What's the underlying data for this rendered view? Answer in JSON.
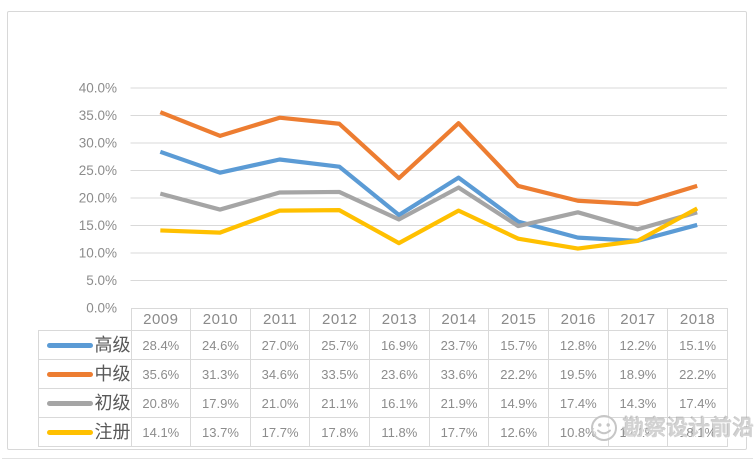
{
  "watermark": {
    "text": "勘察设计前沿",
    "icon": "smiley-face-icon"
  },
  "axis_colors": {
    "gridline": "#d9d9d9",
    "tick_label": "#8c8c8c"
  },
  "chart_data": {
    "type": "line",
    "title": "",
    "xlabel": "",
    "ylabel": "",
    "categories": [
      "2009",
      "2010",
      "2011",
      "2012",
      "2013",
      "2014",
      "2015",
      "2016",
      "2017",
      "2018"
    ],
    "series": [
      {
        "name": "高级",
        "color": "#5B9BD5",
        "values": [
          28.4,
          24.6,
          27.0,
          25.7,
          16.9,
          23.7,
          15.7,
          12.8,
          12.2,
          15.1
        ]
      },
      {
        "name": "中级",
        "color": "#ED7D31",
        "values": [
          35.6,
          31.3,
          34.6,
          33.5,
          23.6,
          33.6,
          22.2,
          19.5,
          18.9,
          22.2
        ]
      },
      {
        "name": "初级",
        "color": "#A5A5A5",
        "values": [
          20.8,
          17.9,
          21.0,
          21.1,
          16.1,
          21.9,
          14.9,
          17.4,
          14.3,
          17.4
        ]
      },
      {
        "name": "注册",
        "color": "#FFC000",
        "values": [
          14.1,
          13.7,
          17.7,
          17.8,
          11.8,
          17.7,
          12.6,
          10.8,
          12.2,
          18.1
        ]
      }
    ],
    "ylim": [
      0,
      40
    ],
    "ytick_step": 5,
    "ytick_labels": [
      "0.0%",
      "5.0%",
      "10.0%",
      "15.0%",
      "20.0%",
      "25.0%",
      "30.0%",
      "35.0%",
      "40.0%"
    ],
    "value_suffix": "%",
    "grid": true,
    "legend_position": "data-table-left",
    "data_table": true
  }
}
